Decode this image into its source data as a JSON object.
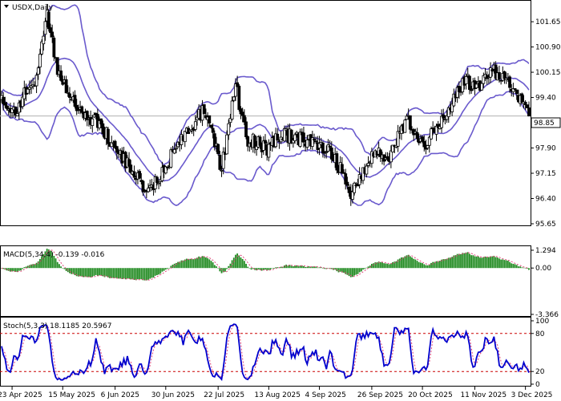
{
  "chart_title": "USDX,Daily",
  "colors": {
    "band": "#6a5acd",
    "candle": "#000000",
    "macd_hist": "#228b22",
    "macd_signal": "#e0457b",
    "stoch_main": "#0000cd",
    "stoch_signal": "#e0457b",
    "level": "#cc0000",
    "price_line": "#b0b0b0"
  },
  "main_panel": {
    "current_price": "98.85",
    "y_ticks": [
      "101.65",
      "100.90",
      "100.15",
      "99.40",
      "98.65",
      "97.90",
      "97.15",
      "96.40",
      "95.65"
    ]
  },
  "macd_panel": {
    "label": "MACD(5,34,4) -0.139 -0.016",
    "y_ticks": [
      "1.294",
      "0.00",
      "-3.366"
    ]
  },
  "stoch_panel": {
    "label": "Stoch(5,3,3) 18.1185 20.5967",
    "y_ticks": [
      "100",
      "80",
      "20",
      "0"
    ],
    "levels": [
      80,
      20
    ]
  },
  "x_labels": [
    "23 Apr 2025",
    "15 May 2025",
    "6 Jun 2025",
    "30 Jun 2025",
    "22 Jul 2025",
    "13 Aug 2025",
    "4 Sep 2025",
    "26 Sep 2025",
    "20 Oct 2025",
    "11 Nov 2025",
    "3 Dec 2025"
  ],
  "chart_data": [
    {
      "type": "candlestick",
      "title": "USDX,Daily",
      "ylim": [
        95.65,
        102.2
      ],
      "trend_anchors": [
        [
          0,
          99.3
        ],
        [
          8,
          98.9
        ],
        [
          14,
          99.6
        ],
        [
          20,
          99.9
        ],
        [
          26,
          101.9
        ],
        [
          32,
          100.2
        ],
        [
          42,
          99.1
        ],
        [
          54,
          98.7
        ],
        [
          66,
          97.9
        ],
        [
          76,
          97.1
        ],
        [
          84,
          96.6
        ],
        [
          94,
          97.4
        ],
        [
          104,
          98.3
        ],
        [
          116,
          99.0
        ],
        [
          126,
          97.3
        ],
        [
          134,
          99.8
        ],
        [
          140,
          98.2
        ],
        [
          152,
          97.9
        ],
        [
          162,
          98.3
        ],
        [
          176,
          98.1
        ],
        [
          188,
          97.8
        ],
        [
          194,
          97.3
        ],
        [
          200,
          96.6
        ],
        [
          206,
          97.1
        ],
        [
          214,
          97.8
        ],
        [
          222,
          97.6
        ],
        [
          232,
          98.8
        ],
        [
          242,
          98.0
        ],
        [
          250,
          98.6
        ],
        [
          258,
          99.3
        ],
        [
          266,
          99.9
        ],
        [
          274,
          99.7
        ],
        [
          282,
          100.2
        ],
        [
          290,
          99.8
        ],
        [
          298,
          99.2
        ],
        [
          302,
          98.85
        ]
      ],
      "bollinger": {
        "period": 20,
        "deviation": 2
      }
    },
    {
      "type": "histogram",
      "title": "MACD(5,34,4)",
      "values_last": {
        "macd": -0.139,
        "signal": -0.016
      },
      "ylim": [
        -3.366,
        1.294
      ]
    },
    {
      "type": "line",
      "title": "Stoch(5,3,3)",
      "values_last": {
        "main": 18.1185,
        "signal": 20.5967
      },
      "ylim": [
        0,
        100
      ],
      "levels": [
        20,
        80
      ]
    }
  ]
}
